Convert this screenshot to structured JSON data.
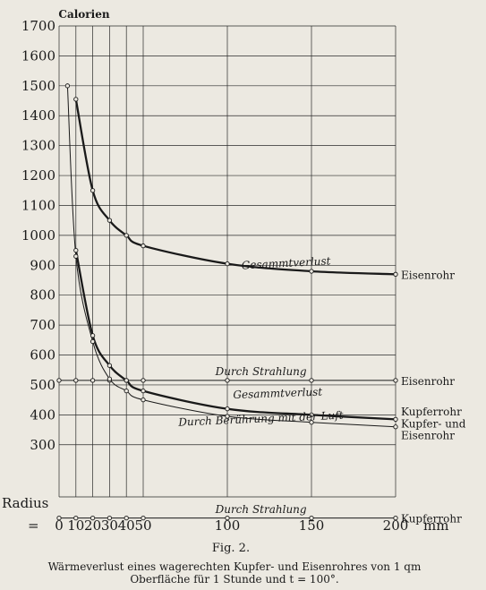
{
  "chart_data": {
    "type": "line",
    "ylabel": "Calorien",
    "xlabel": "Radius",
    "x_prefix": "=",
    "x_unit": "mm",
    "xlim": [
      0,
      200
    ],
    "ylim": [
      300,
      1700
    ],
    "grid": true,
    "x_ticks": [
      0,
      10,
      20,
      30,
      40,
      50,
      100,
      150,
      200
    ],
    "x_tick_labels": [
      "0",
      "10",
      "20",
      "30",
      "40",
      "50",
      "100",
      "150",
      "200"
    ],
    "y_ticks": [
      300,
      400,
      500,
      600,
      700,
      800,
      900,
      1000,
      1100,
      1200,
      1300,
      1400,
      1500,
      1600,
      1700
    ],
    "y_tick_labels": [
      "300",
      "400",
      "500",
      "600",
      "700",
      "800",
      "900",
      "1000",
      "1100",
      "1200",
      "1300",
      "1400",
      "1500",
      "1600",
      "1700"
    ],
    "series": [
      {
        "name": "Gesammtverlust",
        "material": "Eisenrohr",
        "weight": "bold",
        "x": [
          10,
          20,
          30,
          40,
          50,
          100,
          150,
          200
        ],
        "values": [
          1455,
          1150,
          1050,
          1000,
          965,
          905,
          880,
          870
        ]
      },
      {
        "name": "Durch Strahlung",
        "material": "Eisenrohr",
        "weight": "normal",
        "x": [
          0,
          10,
          20,
          30,
          40,
          50,
          100,
          150,
          200
        ],
        "values": [
          515,
          515,
          515,
          515,
          515,
          515,
          515,
          515,
          515
        ]
      },
      {
        "name": "Gesammtverlust",
        "material": "Kupferrohr",
        "weight": "bold",
        "x": [
          10,
          20,
          30,
          40,
          50,
          100,
          150,
          200
        ],
        "values": [
          950,
          665,
          565,
          515,
          480,
          420,
          400,
          385
        ]
      },
      {
        "name": "Durch Berührung mit der Luft",
        "material": "Kupfer- und Eisenrohr",
        "weight": "normal",
        "x": [
          5,
          10,
          20,
          30,
          40,
          50,
          100,
          150,
          200
        ],
        "values": [
          1500,
          930,
          645,
          520,
          480,
          450,
          395,
          375,
          360
        ]
      },
      {
        "name": "Durch Strahlung",
        "material": "Kupferrohr",
        "weight": "normal",
        "x": [
          0,
          10,
          20,
          30,
          40,
          50,
          100,
          150,
          200
        ],
        "values": [
          55,
          55,
          55,
          55,
          55,
          55,
          55,
          55,
          55
        ]
      }
    ],
    "right_labels": [
      {
        "text": "Eisenrohr",
        "y": 870
      },
      {
        "text": "Eisenrohr",
        "y": 515
      },
      {
        "text": "Kupferrohr",
        "y": 398
      },
      {
        "text": "Kupfer- und",
        "y": 358
      },
      {
        "text": "Eisenrohr",
        "y": 358
      },
      {
        "text": "Kupferrohr",
        "y": 55
      }
    ],
    "figure_number": "Fig. 2.",
    "caption_lines": [
      "Wärmeverlust eines wagerechten Kupfer- und Eisenrohres von 1 qm",
      "Oberfläche für 1 Stunde und t = 100°."
    ]
  }
}
